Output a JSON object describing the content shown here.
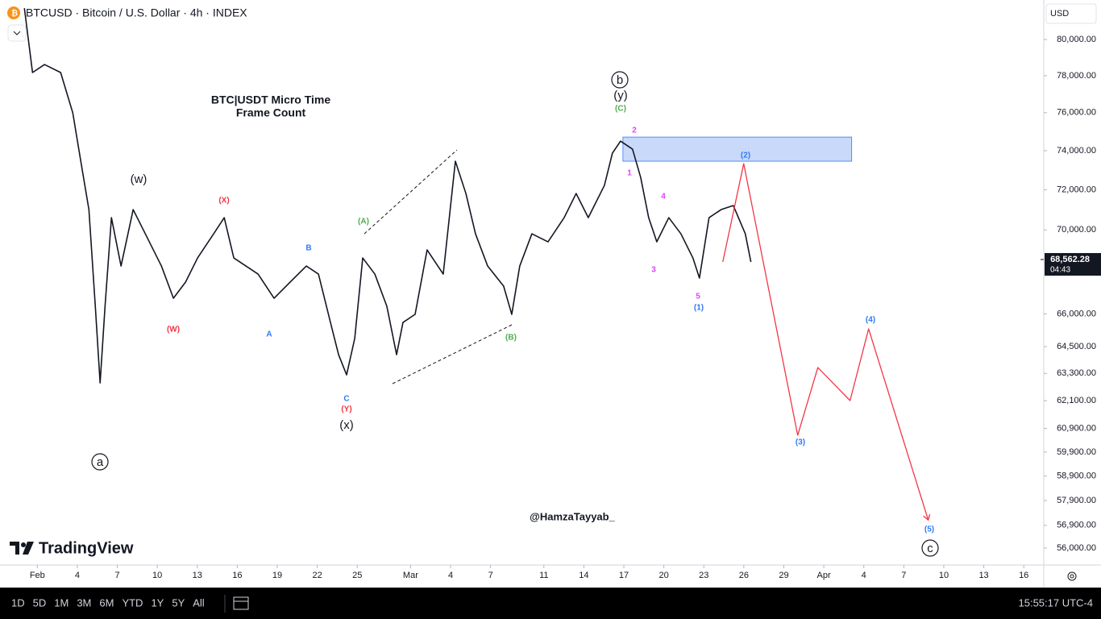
{
  "header": {
    "symbol": "BTCUSD · Bitcoin / U.S. Dollar · 4h · INDEX",
    "currency": "USD"
  },
  "logo": "TradingView",
  "chart_data": {
    "type": "line",
    "title": [
      "BTC|USDT Micro Time",
      "Frame Count"
    ],
    "log_scale": true,
    "grid": false,
    "xlim": [
      -2.8,
      75.5
    ],
    "ylim": [
      55370,
      82250
    ],
    "xticks": [
      {
        "value": 0,
        "label": "Feb"
      },
      {
        "value": 3,
        "label": "4"
      },
      {
        "value": 6,
        "label": "7"
      },
      {
        "value": 9,
        "label": "10"
      },
      {
        "value": 12,
        "label": "13"
      },
      {
        "value": 15,
        "label": "16"
      },
      {
        "value": 18,
        "label": "19"
      },
      {
        "value": 21,
        "label": "22"
      },
      {
        "value": 24,
        "label": "25"
      },
      {
        "value": 28,
        "label": "Mar"
      },
      {
        "value": 31,
        "label": "4"
      },
      {
        "value": 34,
        "label": "7"
      },
      {
        "value": 38,
        "label": "11"
      },
      {
        "value": 41,
        "label": "14"
      },
      {
        "value": 44,
        "label": "17"
      },
      {
        "value": 47,
        "label": "20"
      },
      {
        "value": 50,
        "label": "23"
      },
      {
        "value": 53,
        "label": "26"
      },
      {
        "value": 56,
        "label": "29"
      },
      {
        "value": 59,
        "label": "Apr"
      },
      {
        "value": 62,
        "label": "4"
      },
      {
        "value": 65,
        "label": "7"
      },
      {
        "value": 68,
        "label": "10"
      },
      {
        "value": 71,
        "label": "13"
      },
      {
        "value": 74,
        "label": "16"
      }
    ],
    "yticks": [
      {
        "value": 80000,
        "label": "80,000.00"
      },
      {
        "value": 78000,
        "label": "78,000.00"
      },
      {
        "value": 76000,
        "label": "76,000.00"
      },
      {
        "value": 74000,
        "label": "74,000.00"
      },
      {
        "value": 72000,
        "label": "72,000.00"
      },
      {
        "value": 70000,
        "label": "70,000.00"
      },
      {
        "value": 66000,
        "label": "66,000.00"
      },
      {
        "value": 64500,
        "label": "64,500.00"
      },
      {
        "value": 63300,
        "label": "63,300.00"
      },
      {
        "value": 62100,
        "label": "62,100.00"
      },
      {
        "value": 60900,
        "label": "60,900.00"
      },
      {
        "value": 59900,
        "label": "59,900.00"
      },
      {
        "value": 58900,
        "label": "58,900.00"
      },
      {
        "value": 57900,
        "label": "57,900.00"
      },
      {
        "value": 56900,
        "label": "56,900.00"
      },
      {
        "value": 56000,
        "label": "56,000.00"
      }
    ],
    "series": [
      {
        "color": "#131722",
        "x": [
          -0.97,
          -0.36,
          0.54,
          1.75,
          2.66,
          3.26,
          3.87,
          4.35,
          4.71,
          5.08,
          5.56,
          6.28,
          7.19,
          8.1,
          9.31,
          10.21,
          11.12,
          12.02,
          13.23,
          14.02,
          14.74,
          15.65,
          16.56,
          17.76,
          18.97,
          20.18,
          21.09,
          21.99,
          22.6,
          23.2,
          23.81,
          24.41,
          25.32,
          26.22,
          26.95,
          27.43,
          28.34,
          29.24,
          30.45,
          31.36,
          32.15,
          32.87,
          33.78,
          34.98,
          35.59,
          36.19,
          37.1,
          38.31,
          39.52,
          40.42,
          41.33,
          42.54,
          43.14,
          43.75,
          44.65,
          45.26,
          45.86,
          46.47,
          47.37,
          48.28,
          49.18,
          49.67,
          50.39,
          51.3,
          52.21,
          53.11,
          53.53
        ],
        "values": [
          81780,
          78170,
          78610,
          78170,
          75990,
          73455,
          71005,
          66350,
          62880,
          66350,
          70605,
          68250,
          71005,
          69810,
          68250,
          66725,
          67485,
          68637,
          69810,
          70605,
          68637,
          68250,
          67865,
          66725,
          67485,
          68250,
          67865,
          65602,
          64136,
          63236,
          64866,
          68637,
          67865,
          66350,
          64136,
          65602,
          65975,
          69027,
          67865,
          73455,
          71812,
          69810,
          68250,
          67293,
          65975,
          68250,
          69810,
          69418,
          70605,
          71812,
          70605,
          72219,
          73871,
          74500,
          74080,
          72629,
          70605,
          69418,
          70605,
          69810,
          68637,
          67674,
          70605,
          71005,
          71206,
          69810,
          68444
        ]
      },
      {
        "color": "#f23645",
        "x": [
          51.42,
          52.99,
          57.04,
          58.55,
          60.97,
          62.36,
          66.83
        ],
        "values": [
          68444,
          73330,
          60611,
          63559,
          62103,
          65306,
          57116
        ]
      }
    ],
    "zone": {
      "x": [
        43.93,
        61.09
      ],
      "y": [
        73455,
        74710
      ],
      "color": "#bbd0f7"
    },
    "trendlines": [
      {
        "x": [
          24.53,
          31.48
        ],
        "values": [
          69810,
          74040
        ]
      },
      {
        "x": [
          26.65,
          35.71
        ],
        "values": [
          62845,
          65528
        ]
      }
    ],
    "last_price": {
      "value": 68562.28,
      "label": "68,562.28",
      "countdown": "04:43"
    },
    "annotations": [
      {
        "text": "b",
        "color": "#131722",
        "circled": true
      },
      {
        "text": "(y)",
        "color": "#131722"
      },
      {
        "text": "(C)",
        "color": "#4caf50"
      },
      {
        "text": "2",
        "color": "#e040fb"
      },
      {
        "text": "1",
        "color": "#e040fb"
      },
      {
        "text": "4",
        "color": "#e040fb"
      },
      {
        "text": "3",
        "color": "#e040fb"
      },
      {
        "text": "5",
        "color": "#e040fb"
      },
      {
        "text": "(1)",
        "color": "#3179f5"
      },
      {
        "text": "(2)",
        "color": "#3179f5"
      },
      {
        "text": "(3)",
        "color": "#3179f5"
      },
      {
        "text": "(4)",
        "color": "#3179f5"
      },
      {
        "text": "(5)",
        "color": "#3179f5"
      },
      {
        "text": "c",
        "color": "#131722",
        "circled": true
      },
      {
        "text": "a",
        "color": "#131722",
        "circled": true
      },
      {
        "text": "(w)",
        "color": "#131722"
      },
      {
        "text": "(X)",
        "color": "#f23645"
      },
      {
        "text": "(W)",
        "color": "#f23645"
      },
      {
        "text": "B",
        "color": "#3179f5"
      },
      {
        "text": "A",
        "color": "#3179f5"
      },
      {
        "text": "(A)",
        "color": "#4caf50"
      },
      {
        "text": "(B)",
        "color": "#4caf50"
      },
      {
        "text": "C",
        "color": "#3179f5"
      },
      {
        "text": "(Y)",
        "color": "#f23645"
      },
      {
        "text": "(x)",
        "color": "#131722"
      }
    ],
    "watermark": "@HamzaTayyab_"
  },
  "toolbar": {
    "ranges": [
      "1D",
      "5D",
      "1M",
      "3M",
      "6M",
      "YTD",
      "1Y",
      "5Y",
      "All"
    ],
    "clock": "15:55:17 UTC-4"
  }
}
